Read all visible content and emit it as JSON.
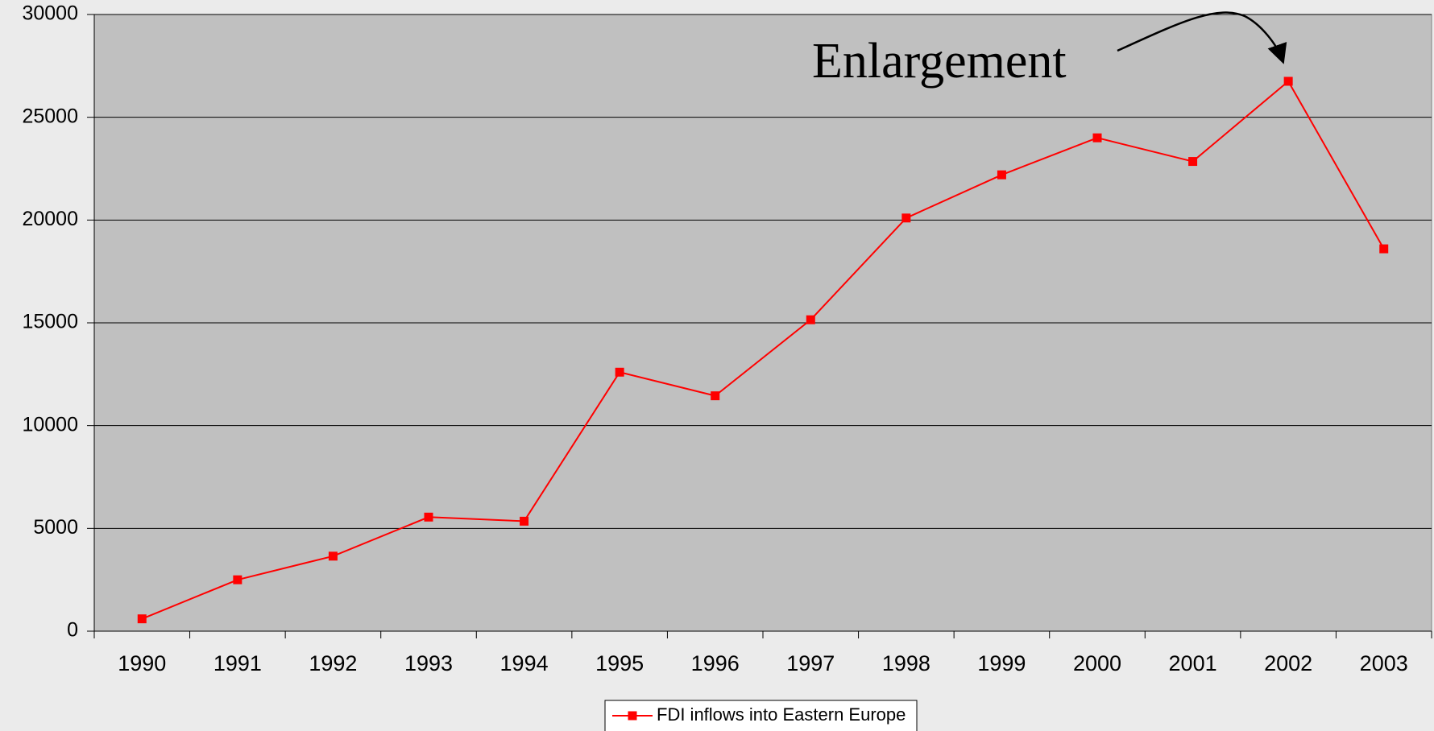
{
  "chart_data": {
    "type": "line",
    "annotation": "Enlargement",
    "categories": [
      "1990",
      "1991",
      "1992",
      "1993",
      "1994",
      "1995",
      "1996",
      "1997",
      "1998",
      "1999",
      "2000",
      "2001",
      "2002",
      "2003"
    ],
    "series": [
      {
        "name": "FDI inflows into Eastern Europe",
        "color": "#ff0000",
        "values": [
          600,
          2500,
          3650,
          5550,
          5350,
          12600,
          11450,
          15150,
          20100,
          22200,
          24000,
          22850,
          26750,
          18600
        ]
      }
    ],
    "ylim": [
      0,
      30000
    ],
    "yticks": [
      0,
      5000,
      10000,
      15000,
      20000,
      25000,
      30000
    ],
    "grid": true,
    "legend": "bottom"
  }
}
